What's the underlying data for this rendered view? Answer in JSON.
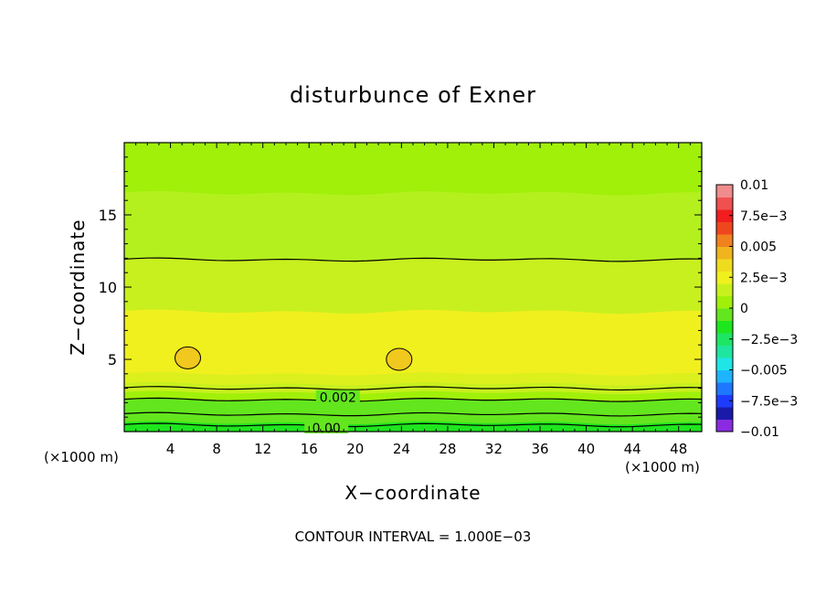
{
  "chart_data": {
    "type": "heatmap",
    "title": "disturbunce of Exner",
    "xlabel": "X−coordinate",
    "ylabel": "Z−coordinate",
    "x_unit": "(×1000 m)",
    "y_unit": "(×1000 m)",
    "xlim": [
      0,
      50
    ],
    "ylim": [
      0,
      20
    ],
    "x_ticks": [
      4,
      8,
      12,
      16,
      20,
      24,
      28,
      32,
      36,
      40,
      44,
      48
    ],
    "y_ticks": [
      5,
      10,
      15
    ],
    "footer": "CONTOUR INTERVAL = 1.000E−03",
    "contour_labels": [
      "0.002",
      "0.00"
    ],
    "colorbar": {
      "min": -0.01,
      "max": 0.01,
      "labels": [
        "0.01",
        "7.5e−3",
        "0.005",
        "2.5e−3",
        "0",
        "−2.5e−3",
        "−0.005",
        "−7.5e−3",
        "−0.01"
      ],
      "colors": [
        "#8a2be2",
        "#1a1aa8",
        "#1e3cff",
        "#1e78ff",
        "#1eb4ff",
        "#1ee6e6",
        "#1ee6a0",
        "#1ee664",
        "#1ee61e",
        "#64e61e",
        "#a0f00a",
        "#c8f01e",
        "#f0f01e",
        "#f0dc1e",
        "#f0b41e",
        "#f0821e",
        "#f0461e",
        "#f01e1e",
        "#f05050",
        "#f08c8c"
      ]
    },
    "bands": [
      {
        "z_top": 0.25,
        "value": 0.0,
        "color": "#1ee61e"
      },
      {
        "z_top": 0.6,
        "value": 0.0005,
        "color": "#1ee61e"
      },
      {
        "z_top": 1.4,
        "value": 0.001,
        "color": "#64e61e"
      },
      {
        "z_top": 2.2,
        "value": 0.0015,
        "color": "#64e61e"
      },
      {
        "z_top": 2.7,
        "value": 0.002,
        "color": "#a0f00a"
      },
      {
        "z_top": 3.3,
        "value": 0.0025,
        "color": "#c8f01e"
      },
      {
        "z_top": 4.0,
        "value": 0.003,
        "color": "#dcf01e"
      },
      {
        "z_top": 8.3,
        "value": 0.0035,
        "color": "#f0f01e"
      },
      {
        "z_top": 11.9,
        "value": 0.003,
        "color": "#c8f01e"
      },
      {
        "z_top": 16.5,
        "value": 0.0025,
        "color": "#b4f01e"
      },
      {
        "z_top": 20.0,
        "value": 0.002,
        "color": "#a0f00a"
      }
    ],
    "contours": [
      {
        "z": 0.45,
        "level": 0.0
      },
      {
        "z": 1.2,
        "level": 0.001
      },
      {
        "z": 2.2,
        "level": 0.002
      },
      {
        "z": 3.0,
        "level": 0.002
      },
      {
        "z": 11.9,
        "level": 0.003
      }
    ],
    "cells": [
      {
        "x": 5.5,
        "z": 5.1,
        "level": 0.004,
        "color": "#f0c81e"
      },
      {
        "x": 23.8,
        "z": 5.0,
        "level": 0.004,
        "color": "#f0c81e"
      }
    ]
  }
}
